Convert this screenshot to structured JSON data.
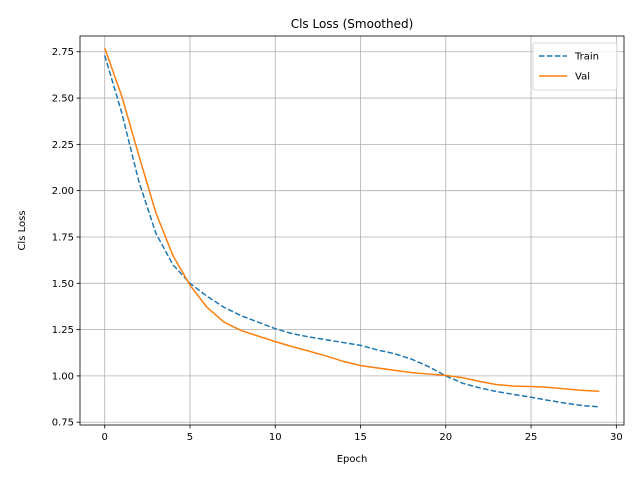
{
  "chart_data": {
    "type": "line",
    "title": "Cls Loss (Smoothed)",
    "xlabel": "Epoch",
    "ylabel": "Cls Loss",
    "xlim": [
      -1.45,
      30.45
    ],
    "ylim": [
      0.735,
      2.835
    ],
    "xticks": [
      0,
      5,
      10,
      15,
      20,
      25,
      30
    ],
    "yticks": [
      0.75,
      1.0,
      1.25,
      1.5,
      1.75,
      2.0,
      2.25,
      2.5,
      2.75
    ],
    "ytick_labels": [
      "0.75",
      "1.00",
      "1.25",
      "1.50",
      "1.75",
      "2.00",
      "2.25",
      "2.50",
      "2.75"
    ],
    "grid": true,
    "legend_position": "top-right",
    "x": [
      0,
      1,
      2,
      3,
      4,
      5,
      6,
      7,
      8,
      9,
      10,
      11,
      12,
      13,
      14,
      15,
      16,
      17,
      18,
      19,
      20,
      21,
      22,
      23,
      24,
      25,
      26,
      27,
      28,
      29
    ],
    "series": [
      {
        "name": "Train",
        "color": "#1f77b4",
        "style": "dashed",
        "values": [
          2.73,
          2.42,
          2.05,
          1.77,
          1.6,
          1.5,
          1.43,
          1.37,
          1.325,
          1.29,
          1.255,
          1.228,
          1.21,
          1.195,
          1.18,
          1.165,
          1.14,
          1.12,
          1.09,
          1.05,
          1.0,
          0.96,
          0.935,
          0.915,
          0.9,
          0.885,
          0.868,
          0.853,
          0.84,
          0.833
        ]
      },
      {
        "name": "Val",
        "color": "#ff7f0e",
        "style": "solid",
        "values": [
          2.77,
          2.51,
          2.19,
          1.88,
          1.65,
          1.49,
          1.37,
          1.29,
          1.245,
          1.215,
          1.185,
          1.158,
          1.133,
          1.107,
          1.078,
          1.056,
          1.043,
          1.03,
          1.018,
          1.01,
          1.003,
          0.99,
          0.97,
          0.953,
          0.945,
          0.943,
          0.938,
          0.93,
          0.922,
          0.917
        ]
      }
    ]
  }
}
